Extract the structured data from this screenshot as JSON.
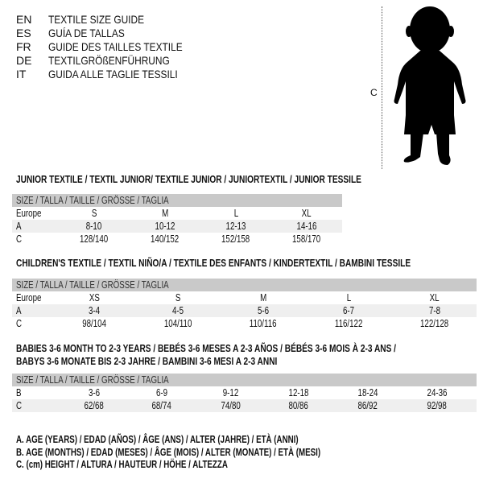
{
  "languages": [
    {
      "code": "EN",
      "text": "TEXTILE SIZE GUIDE"
    },
    {
      "code": "ES",
      "text": "GUÍA DE TALLAS"
    },
    {
      "code": "FR",
      "text": "GUIDE DES TAILLES TEXTILE"
    },
    {
      "code": "DE",
      "text": "TEXTILGRÖßENFÜHRUNG"
    },
    {
      "code": "IT",
      "text": "GUIDA ALLE TAGLIE TESSILI"
    }
  ],
  "figure": {
    "label": "C"
  },
  "size_header": "SIZE / TALLA / TAILLE / GRÖSSE / TAGLIA",
  "tables": [
    {
      "title": "JUNIOR TEXTILE / TEXTIL JUNIOR/ TEXTILE JUNIOR / JUNIORTEXTIL / JUNIOR TESSILE",
      "rows": [
        {
          "label": "Europe",
          "values": [
            "S",
            "M",
            "L",
            "XL"
          ]
        },
        {
          "label": "A",
          "values": [
            "8-10",
            "10-12",
            "12-13",
            "14-16"
          ]
        },
        {
          "label": "C",
          "values": [
            "128/140",
            "140/152",
            "152/158",
            "158/170"
          ]
        }
      ]
    },
    {
      "title": "CHILDREN'S TEXTILE / TEXTIL NIÑO/A / TEXTILE DES ENFANTS / KINDERTEXTIL / BAMBINI TESSILE",
      "rows": [
        {
          "label": "Europe",
          "values": [
            "XS",
            "S",
            "M",
            "L",
            "XL"
          ]
        },
        {
          "label": "A",
          "values": [
            "3-4",
            "4-5",
            "5-6",
            "6-7",
            "7-8"
          ]
        },
        {
          "label": "C",
          "values": [
            "98/104",
            "104/110",
            "110/116",
            "116/122",
            "122/128"
          ]
        }
      ]
    },
    {
      "title": "BABIES 3-6 MONTH TO 2-3 YEARS / BEBÉS 3-6 MESES A 2-3 AÑOS / BÉBÉS 3-6 MOIS À 2-3 ANS /",
      "title2": "BABYS 3-6 MONATE BIS 2-3 JAHRE / BAMBINI 3-6 MESI A 2-3 ANNI",
      "rows": [
        {
          "label": "B",
          "values": [
            "3-6",
            "6-9",
            "9-12",
            "12-18",
            "18-24",
            "24-36"
          ]
        },
        {
          "label": "C",
          "values": [
            "62/68",
            "68/74",
            "74/80",
            "80/86",
            "86/92",
            "92/98"
          ]
        }
      ]
    }
  ],
  "legend": [
    "A. AGE (YEARS) / EDAD (AÑOS) / ÂGE (ANS) / ALTER (JAHRE) / ETÀ (ANNI)",
    "B. AGE (MONTHS) / EDAD (MESES) / ÂGE (MOIS) / ALTER (MONATE) / ETÀ (MESI)",
    "C. (cm) HEIGHT / ALTURA / HAUTEUR / HÖHE / ALTEZZA"
  ]
}
